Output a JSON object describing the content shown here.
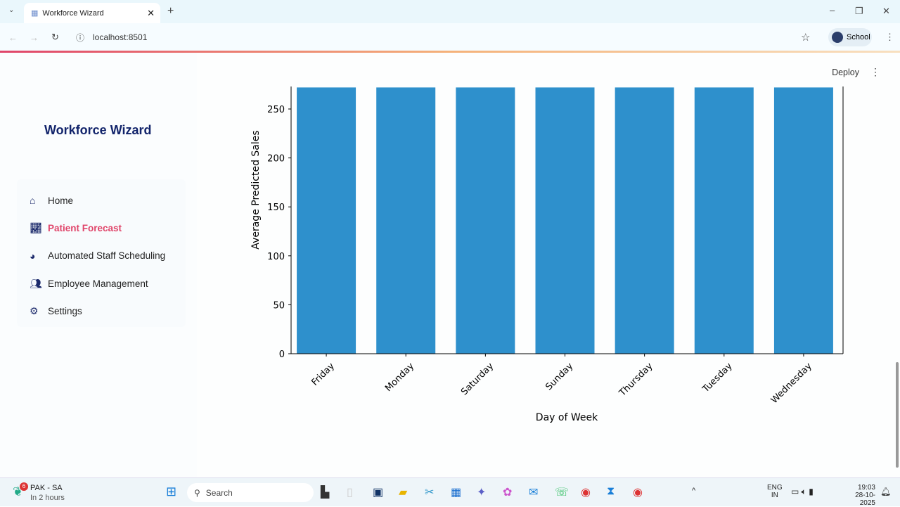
{
  "browser": {
    "tab_title": "Workforce Wizard",
    "url": "localhost:8501",
    "profile": "School"
  },
  "app": {
    "title": "Workforce Wizard",
    "deploy": "Deploy",
    "menu": [
      {
        "label": "Home",
        "icon": "home-icon",
        "glyph": "⌂"
      },
      {
        "label": "Patient Forecast",
        "icon": "chart-line-icon",
        "glyph": "📈︎",
        "active": true
      },
      {
        "label": "Automated Staff Scheduling",
        "icon": "pie-chart-icon",
        "glyph": "◕"
      },
      {
        "label": "Employee Management",
        "icon": "users-icon",
        "glyph": "👥︎"
      },
      {
        "label": "Settings",
        "icon": "gear-icon",
        "glyph": "⚙"
      }
    ]
  },
  "chart_data": {
    "type": "bar",
    "categories": [
      "Friday",
      "Monday",
      "Saturday",
      "Sunday",
      "Thursday",
      "Tuesday",
      "Wednesday"
    ],
    "values": [
      272,
      272,
      272,
      272,
      272,
      272,
      272
    ],
    "xlabel": "Day of Week",
    "ylabel": "Average Predicted Sales",
    "yticks": [
      0,
      50,
      100,
      150,
      200,
      250
    ],
    "ylim": [
      0,
      272
    ],
    "color": "#2e90cc",
    "grid": false
  },
  "taskbar": {
    "weather_title": "PAK - SA",
    "weather_sub": "In 2 hours",
    "badge": "6",
    "search": "Search",
    "lang1": "ENG",
    "lang2": "IN",
    "time": "19:03",
    "date": "28-10-2025"
  }
}
